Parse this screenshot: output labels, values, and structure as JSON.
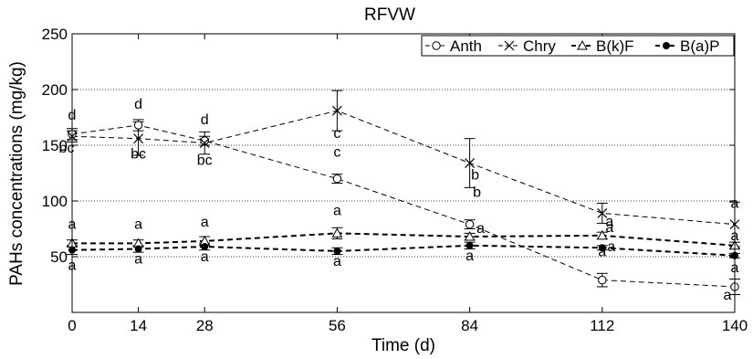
{
  "chart_data": {
    "type": "line",
    "title": "RFVW",
    "xlabel": "Time (d)",
    "ylabel": "PAHs concentrations (mg/kg)",
    "xlim": [
      0,
      140
    ],
    "ylim": [
      0,
      250
    ],
    "x_ticks": [
      "0",
      "14",
      "28",
      "56",
      "84",
      "112",
      "140"
    ],
    "y_ticks": [
      "50",
      "100",
      "150",
      "200",
      "250"
    ],
    "x": [
      0,
      14,
      28,
      56,
      84,
      112,
      140
    ],
    "grid": "horizontal dotted",
    "legend_position": "top-right",
    "series": [
      {
        "name": "Anth",
        "marker": "circle",
        "line_color": "#000000",
        "values": [
          160,
          168,
          154,
          120,
          79,
          29,
          23
        ],
        "errors": [
          5,
          5,
          4,
          4,
          4,
          6,
          7
        ],
        "letters": [
          "d",
          "d",
          "d",
          "c",
          "b",
          "a",
          "a"
        ]
      },
      {
        "name": "Chry",
        "marker": "x",
        "line_color": "#000000",
        "values": [
          158,
          156,
          152,
          181,
          134,
          89,
          79
        ],
        "errors": [
          5,
          15,
          10,
          18,
          22,
          9,
          20
        ],
        "letters": [
          "bc",
          "bc",
          "bc",
          "c",
          "b",
          "a",
          "a"
        ]
      },
      {
        "name": "B(k)F",
        "marker": "triangle",
        "line_color": "#000000",
        "values": [
          62,
          62,
          64,
          71,
          68,
          69,
          60
        ],
        "errors": [
          3,
          3,
          4,
          5,
          3,
          3,
          3
        ],
        "letters": [
          "a",
          "a",
          "a",
          "a",
          "a",
          "a",
          "a"
        ]
      },
      {
        "name": "B(a)P",
        "marker": "dot",
        "line_color": "#000000",
        "values": [
          56,
          57,
          59,
          55,
          60,
          58,
          51
        ],
        "errors": [
          4,
          3,
          3,
          3,
          3,
          2,
          2
        ],
        "letters": [
          "a",
          "a",
          "a",
          "a",
          "a",
          "a",
          "a"
        ]
      }
    ]
  }
}
